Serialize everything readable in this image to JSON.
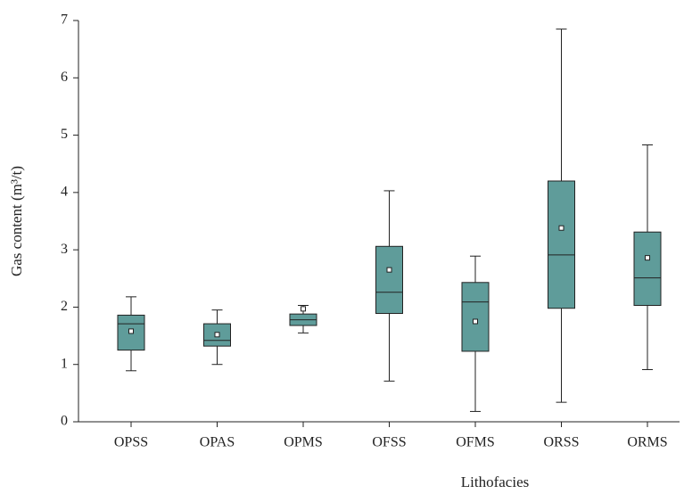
{
  "chart_data": {
    "type": "box",
    "x_label": "Lithofacies",
    "y_label": "Gas content (m³/t)",
    "categories": [
      "OPSS",
      "OPAS",
      "OPMS",
      "OFSS",
      "OFMS",
      "ORSS",
      "ORMS"
    ],
    "min": [
      0.89,
      1.0,
      1.55,
      0.71,
      0.18,
      0.34,
      0.91
    ],
    "q1": [
      1.25,
      1.32,
      1.68,
      1.89,
      1.23,
      1.98,
      2.03
    ],
    "median": [
      1.71,
      1.42,
      1.78,
      2.26,
      2.09,
      2.91,
      2.51
    ],
    "q3": [
      1.86,
      1.71,
      1.88,
      3.06,
      2.43,
      4.2,
      3.31
    ],
    "max": [
      2.18,
      1.95,
      2.03,
      4.03,
      2.89,
      6.85,
      4.83
    ],
    "mean": [
      1.58,
      1.52,
      1.97,
      2.65,
      1.75,
      3.38,
      2.86
    ],
    "color": "#5f9c9a",
    "ylim": [
      0,
      7
    ],
    "yticks": [
      0,
      1,
      2,
      3,
      4,
      5,
      6,
      7
    ]
  }
}
